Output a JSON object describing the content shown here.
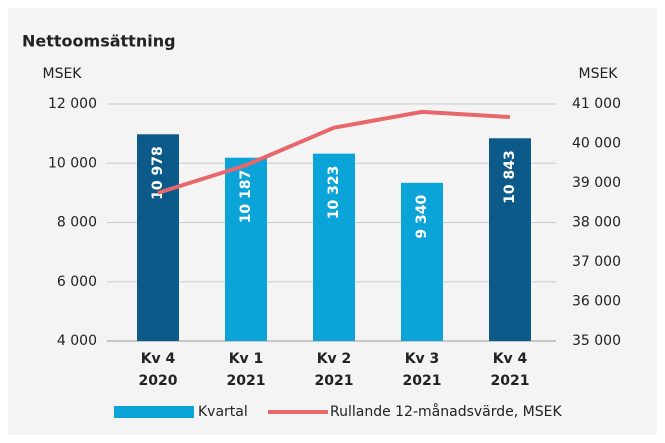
{
  "chart_data": {
    "type": "bar",
    "title": "Nettoomsättning",
    "y_label": "MSEK",
    "y2_label": "MSEK",
    "categories": [
      [
        "Kv 4",
        "2020"
      ],
      [
        "Kv 1",
        "2021"
      ],
      [
        "Kv 2",
        "2021"
      ],
      [
        "Kv 3",
        "2021"
      ],
      [
        "Kv 4",
        "2021"
      ]
    ],
    "series": [
      {
        "name": "Kvartal",
        "type": "bar",
        "color": "#0aa4d8",
        "colors": [
          "#0b5a8a",
          "#0aa4d8",
          "#0aa4d8",
          "#0aa4d8",
          "#0b5a8a"
        ],
        "values": [
          10978,
          10187,
          10323,
          9340,
          10843
        ],
        "value_labels": [
          "10 978",
          "10 187",
          "10 323",
          "9 340",
          "10 843"
        ]
      },
      {
        "name": "Rullande 12-månadsvärde, MSEK",
        "type": "line",
        "axis": "y2",
        "color": "#e8676b",
        "values": [
          38750,
          39450,
          40400,
          40800,
          40670
        ]
      }
    ],
    "ylim": [
      4000,
      12000
    ],
    "yticks": [
      {
        "value": 4000,
        "label": "4 000"
      },
      {
        "value": 6000,
        "label": "6 000"
      },
      {
        "value": 8000,
        "label": "8 000"
      },
      {
        "value": 10000,
        "label": "10 000"
      },
      {
        "value": 12000,
        "label": "12 000"
      }
    ],
    "y2lim": [
      35000,
      41000
    ],
    "y2ticks": [
      {
        "value": 35000,
        "label": "35 000"
      },
      {
        "value": 36000,
        "label": "36 000"
      },
      {
        "value": 37000,
        "label": "37 000"
      },
      {
        "value": 38000,
        "label": "38 000"
      },
      {
        "value": 39000,
        "label": "39 000"
      },
      {
        "value": 40000,
        "label": "40 000"
      },
      {
        "value": 41000,
        "label": "41 000"
      }
    ],
    "grid": true
  }
}
